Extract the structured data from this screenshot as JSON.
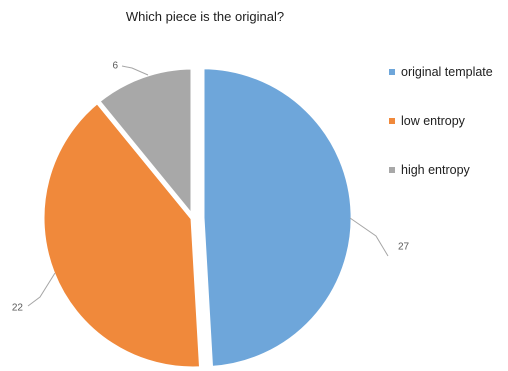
{
  "chart_data": {
    "type": "pie",
    "title": "Which piece is the original?",
    "slices": [
      {
        "label": "original template",
        "value": 27,
        "color": "#6ea6da",
        "exploded": true
      },
      {
        "label": "low entropy",
        "value": 22,
        "color": "#f0893b",
        "exploded": false
      },
      {
        "label": "high entropy",
        "value": 6,
        "color": "#a8a8a8",
        "exploded": false
      }
    ],
    "data_labels": [
      "27",
      "22",
      "6"
    ],
    "legend_position": "right",
    "leader_line_color": "#a6a6a6"
  }
}
